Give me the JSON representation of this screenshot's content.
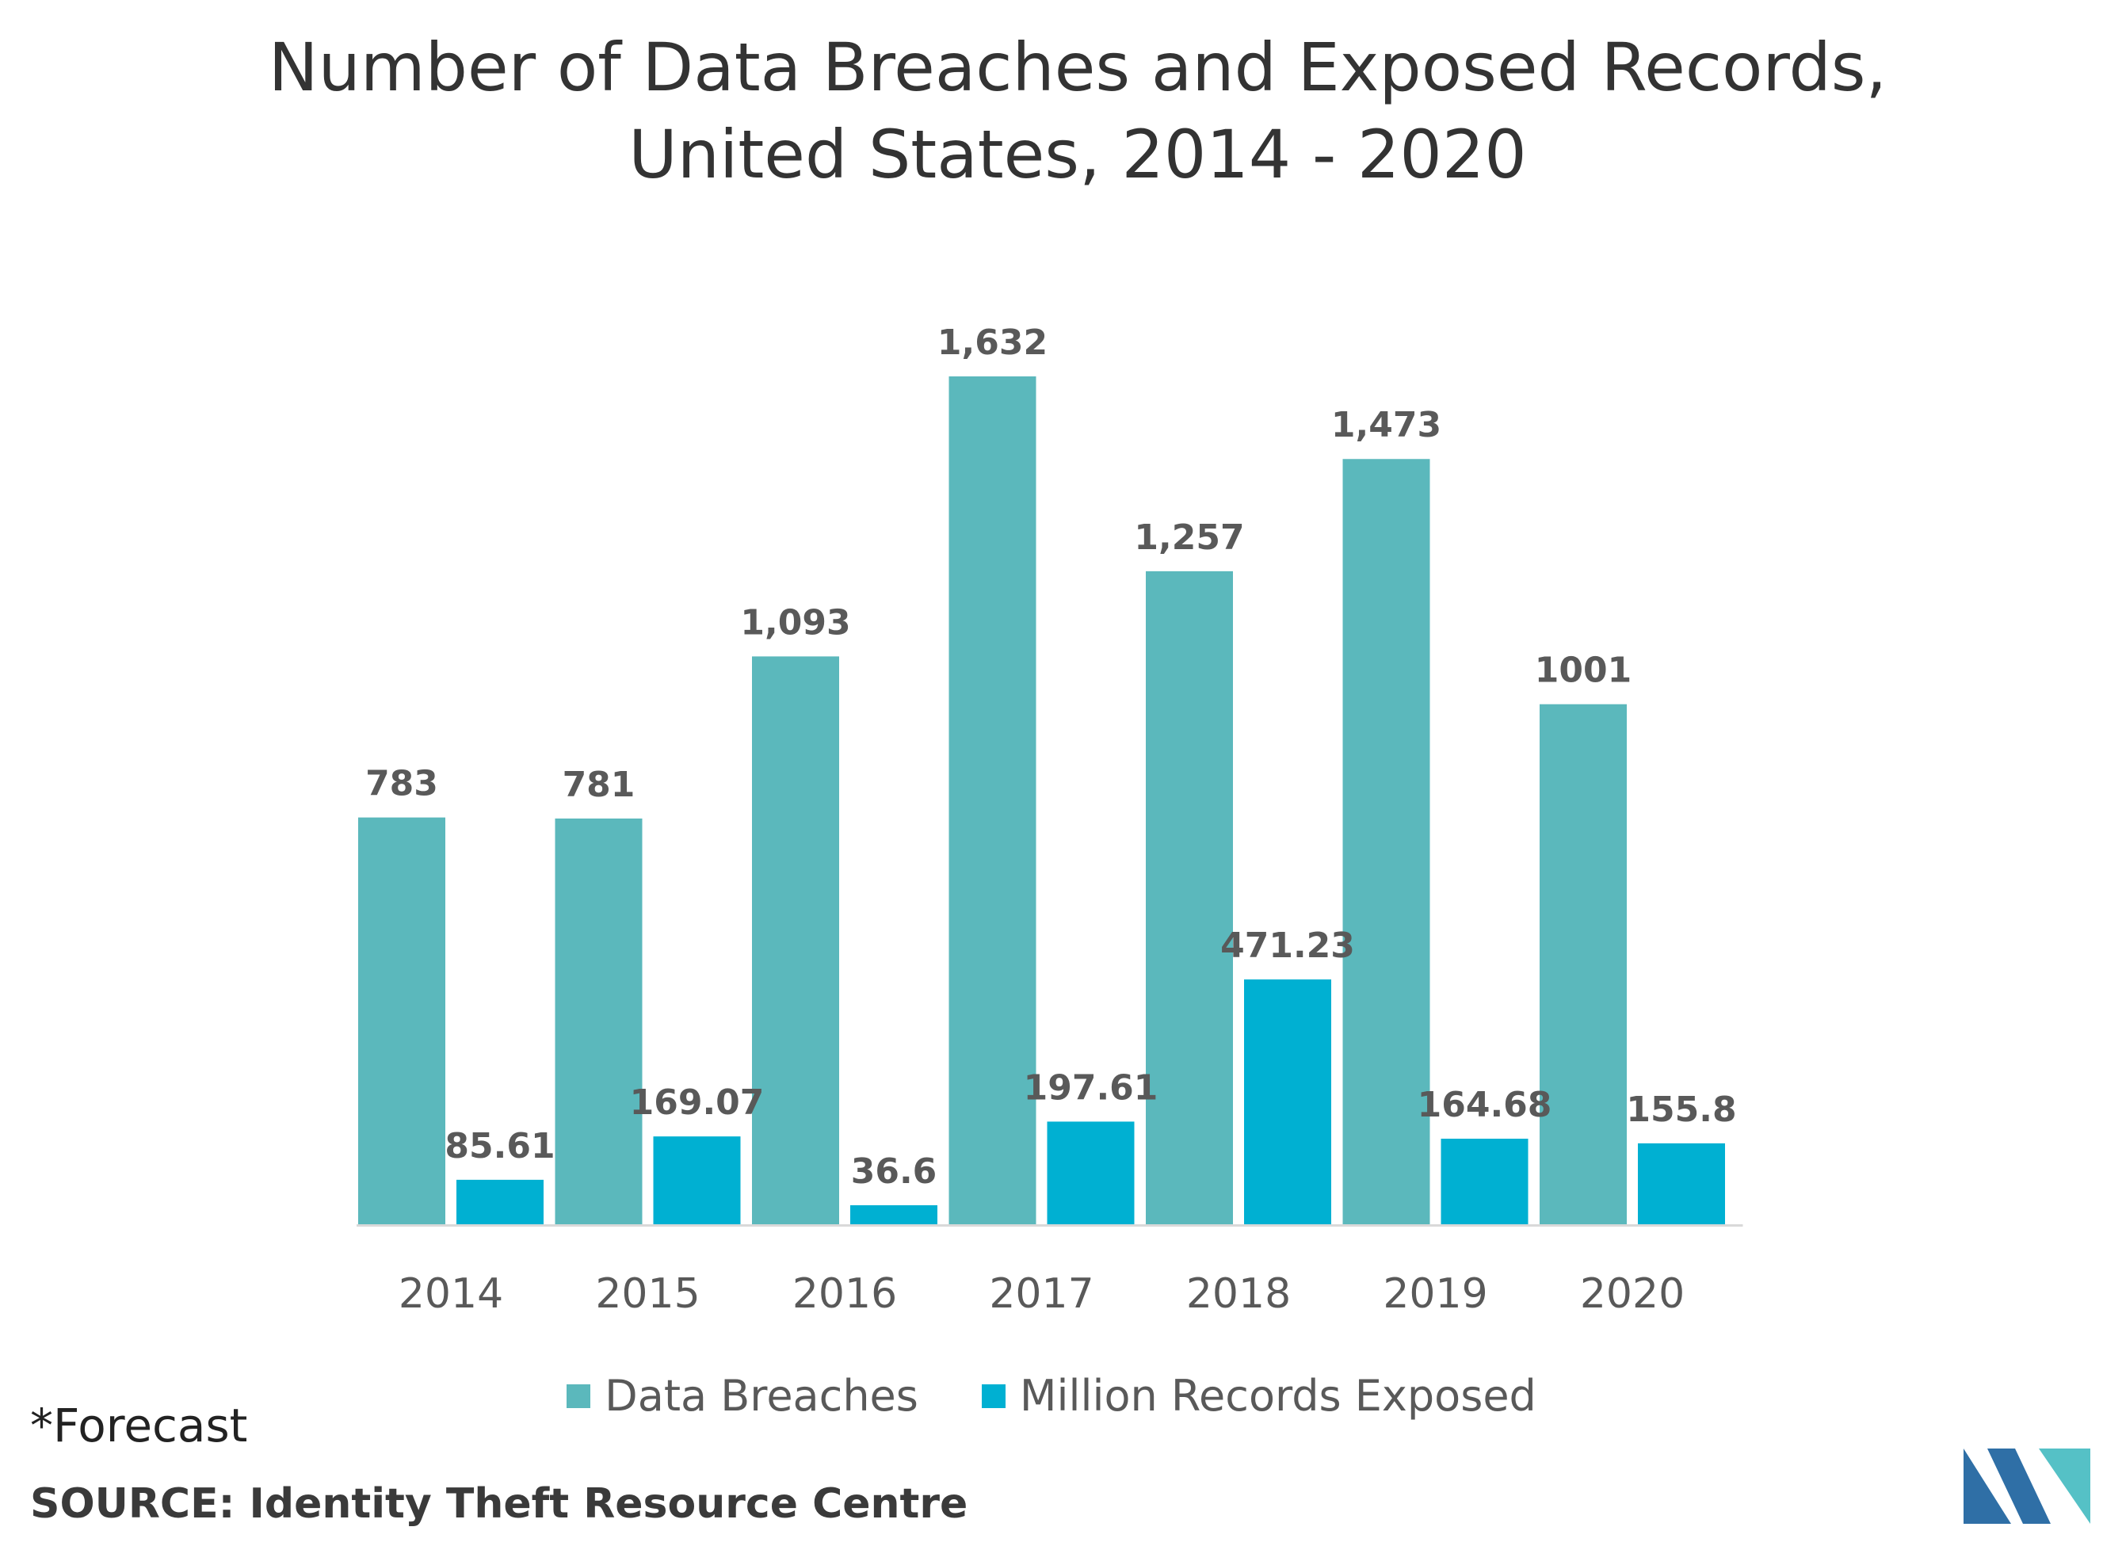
{
  "header": {
    "title": "Number of Data Breaches and Exposed Records, United States, 2014 - 2020"
  },
  "chart_data": {
    "type": "bar",
    "title": "Number of Data Breaches and Exposed Records, United States, 2014 - 2020",
    "categories": [
      "2014",
      "2015",
      "2016",
      "2017",
      "2018",
      "2019",
      "2020"
    ],
    "series": [
      {
        "name": "Data Breaches",
        "values": [
          783,
          781,
          1093,
          1632,
          1257,
          1473,
          1001
        ],
        "labels": [
          "783",
          "781",
          "1,093",
          "1,632",
          "1,257",
          "1,473",
          "1001"
        ],
        "color": "#5BB8BC"
      },
      {
        "name": "Million Records Exposed",
        "values": [
          85.61,
          169.07,
          36.6,
          197.61,
          471.23,
          164.68,
          155.8
        ],
        "labels": [
          "85.61",
          "169.07",
          "36.6",
          "197.61",
          "471.23",
          "164.68",
          "155.8"
        ],
        "color": "#00B0D2"
      }
    ],
    "xlabel": "",
    "ylabel": "",
    "ylim": [
      0,
      1632
    ],
    "grid": false,
    "legend": "bottom"
  },
  "footer": {
    "note": "*Forecast",
    "source": "SOURCE: Identity Theft Resource Centre"
  },
  "logo": {
    "colors": [
      "#2F6FA6",
      "#55C1C6"
    ]
  }
}
